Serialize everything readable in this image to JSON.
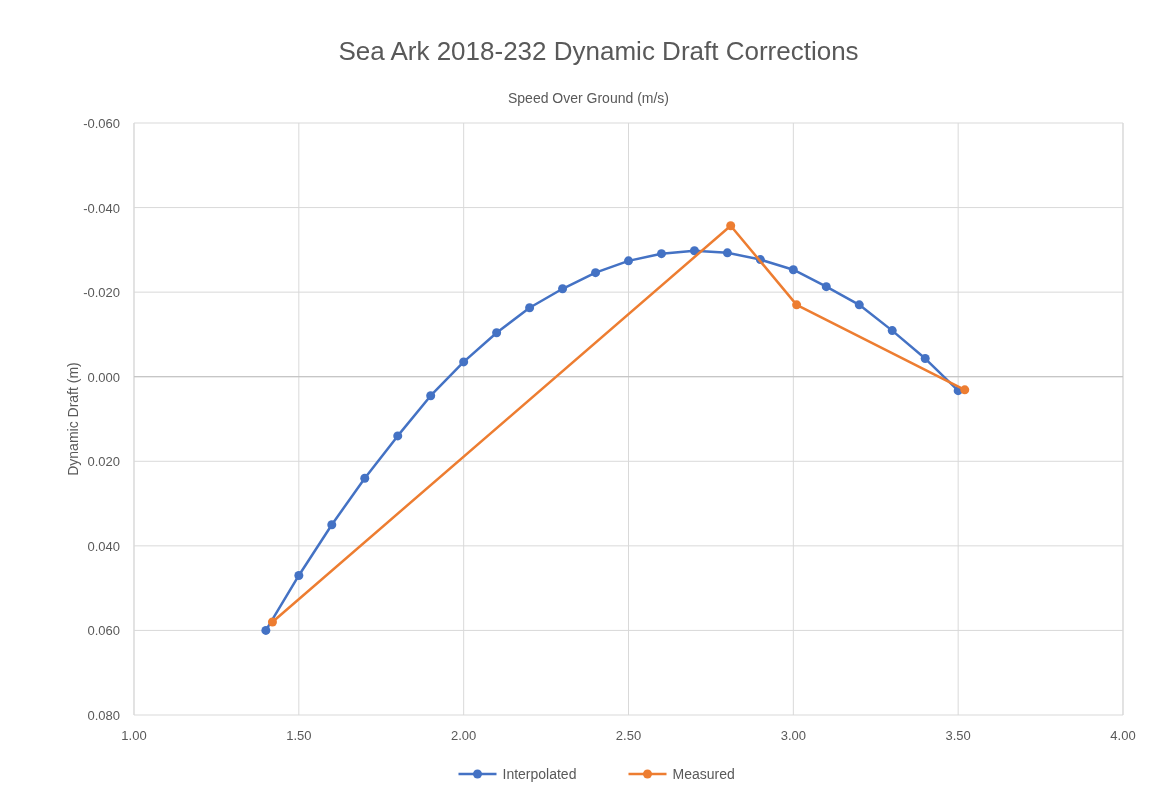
{
  "chart_data": {
    "type": "line",
    "title": "Sea Ark 2018-232 Dynamic Draft Corrections",
    "xlabel": "Speed Over Ground (m/s)",
    "ylabel": "Dynamic Draft (m)",
    "xlim": [
      1,
      4
    ],
    "xticks": [
      {
        "value": 1,
        "label": "1.00"
      },
      {
        "value": 1.5,
        "label": "1.50"
      },
      {
        "value": 2,
        "label": "2.00"
      },
      {
        "value": 2.5,
        "label": "2.50"
      },
      {
        "value": 3,
        "label": "3.00"
      },
      {
        "value": 3.5,
        "label": "3.50"
      },
      {
        "value": 4,
        "label": "4.00"
      }
    ],
    "ylim": [
      0.08,
      -0.06
    ],
    "yticks": [
      {
        "value": -0.06,
        "label": "-0.060"
      },
      {
        "value": -0.04,
        "label": "-0.040"
      },
      {
        "value": -0.02,
        "label": "-0.020"
      },
      {
        "value": 0,
        "label": "0.000"
      },
      {
        "value": 0.02,
        "label": "0.020"
      },
      {
        "value": 0.04,
        "label": "0.040"
      },
      {
        "value": 0.06,
        "label": "0.060"
      },
      {
        "value": 0.08,
        "label": "0.080"
      }
    ],
    "grid": true,
    "legend": "bottom",
    "marker": "circle",
    "series": [
      {
        "name": "Interpolated",
        "color": "#4472c4",
        "x": [
          1.4,
          1.5,
          1.6,
          1.7,
          1.8,
          1.9,
          2.0,
          2.1,
          2.2,
          2.3,
          2.4,
          2.5,
          2.6,
          2.7,
          2.8,
          2.9,
          3.0,
          3.1,
          3.2,
          3.3,
          3.4,
          3.5
        ],
        "values": [
          0.06,
          0.047,
          0.035,
          0.024,
          0.014,
          0.0045,
          -0.0035,
          -0.0104,
          -0.0163,
          -0.0208,
          -0.0246,
          -0.0274,
          -0.0291,
          -0.0298,
          -0.0293,
          -0.0277,
          -0.0253,
          -0.0213,
          -0.017,
          -0.0109,
          -0.0043,
          0.0033
        ]
      },
      {
        "name": "Measured",
        "color": "#ed7d31",
        "x": [
          1.42,
          2.81,
          3.01,
          3.52
        ],
        "values": [
          0.058,
          -0.0357,
          -0.017,
          0.0031
        ]
      }
    ]
  }
}
